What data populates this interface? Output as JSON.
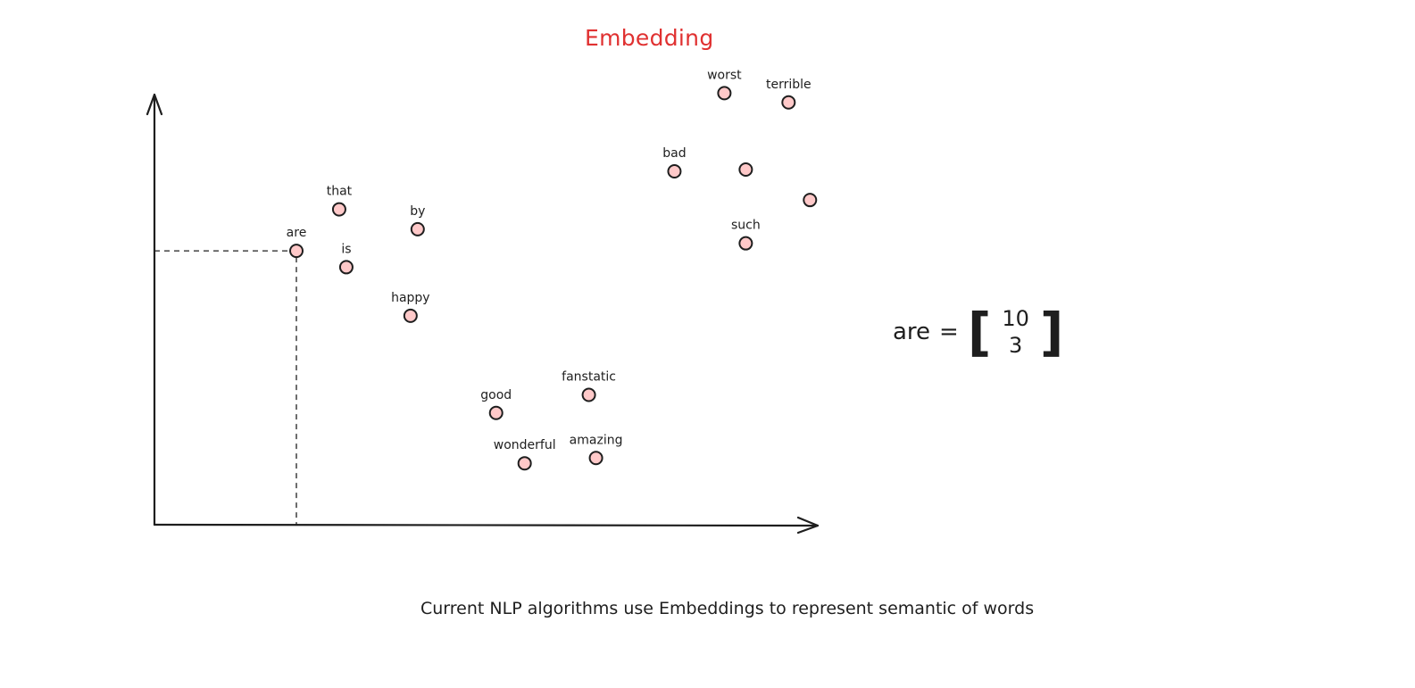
{
  "title": "Embedding",
  "words": [
    {
      "label": "worst",
      "x": 0.6,
      "y": 9.77
    },
    {
      "label": "terrible",
      "x": 0.69,
      "y": 9.56
    },
    {
      "label": "bad",
      "x": 0.53,
      "y": 8.0
    },
    {
      "label": "",
      "x": 0.63,
      "y": 8.04
    },
    {
      "label": "",
      "x": 0.72,
      "y": 7.35
    },
    {
      "label": "such",
      "x": 0.63,
      "y": 6.37
    },
    {
      "label": "that",
      "x": 0.06,
      "y": 7.14
    },
    {
      "label": "by",
      "x": 0.17,
      "y": 6.69
    },
    {
      "label": "are",
      "x": 0.0,
      "y": 6.2
    },
    {
      "label": "is",
      "x": 0.07,
      "y": 5.83
    },
    {
      "label": "happy",
      "x": 0.16,
      "y": 4.73
    },
    {
      "label": "fanstatic",
      "x": 0.41,
      "y": 2.94
    },
    {
      "label": "good",
      "x": 0.28,
      "y": 2.53
    },
    {
      "label": "wonderful",
      "x": 0.32,
      "y": 1.39
    },
    {
      "label": "amazing",
      "x": 0.42,
      "y": 1.51
    }
  ],
  "highlight": "are",
  "equation": {
    "word": "are",
    "sign": "=",
    "vector": [
      "10",
      "3"
    ]
  },
  "caption": "Current NLP algorithms use Embeddings to represent semantic of words",
  "colors": {
    "title": "#e03131",
    "dot_fill": "#ffc9c9",
    "ink": "#1e1e1e"
  }
}
